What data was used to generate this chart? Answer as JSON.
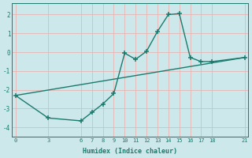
{
  "line1_x": [
    0,
    3,
    6,
    7,
    8,
    9,
    10,
    11,
    12,
    13,
    14,
    15,
    16,
    17,
    18,
    21
  ],
  "line1_y": [
    -2.3,
    -3.5,
    -3.65,
    -3.2,
    -2.75,
    -2.2,
    -0.05,
    -0.38,
    0.05,
    1.1,
    2.0,
    2.05,
    -0.28,
    -0.5,
    -0.5,
    -0.28
  ],
  "line2_x": [
    0,
    21
  ],
  "line2_y": [
    -2.3,
    -0.28
  ],
  "line_color": "#1a7a6e",
  "bg_color": "#cce8ea",
  "grid_color": "#e8b4b4",
  "xlabel": "Humidex (Indice chaleur)",
  "xticks": [
    0,
    3,
    6,
    7,
    8,
    9,
    10,
    11,
    12,
    13,
    14,
    15,
    16,
    17,
    18,
    21
  ],
  "yticks": [
    -4,
    -3,
    -2,
    -1,
    0,
    1,
    2
  ],
  "xlim": [
    -0.3,
    21.3
  ],
  "ylim": [
    -4.5,
    2.6
  ],
  "marker": "+",
  "markersize": 4,
  "linewidth": 1.0
}
